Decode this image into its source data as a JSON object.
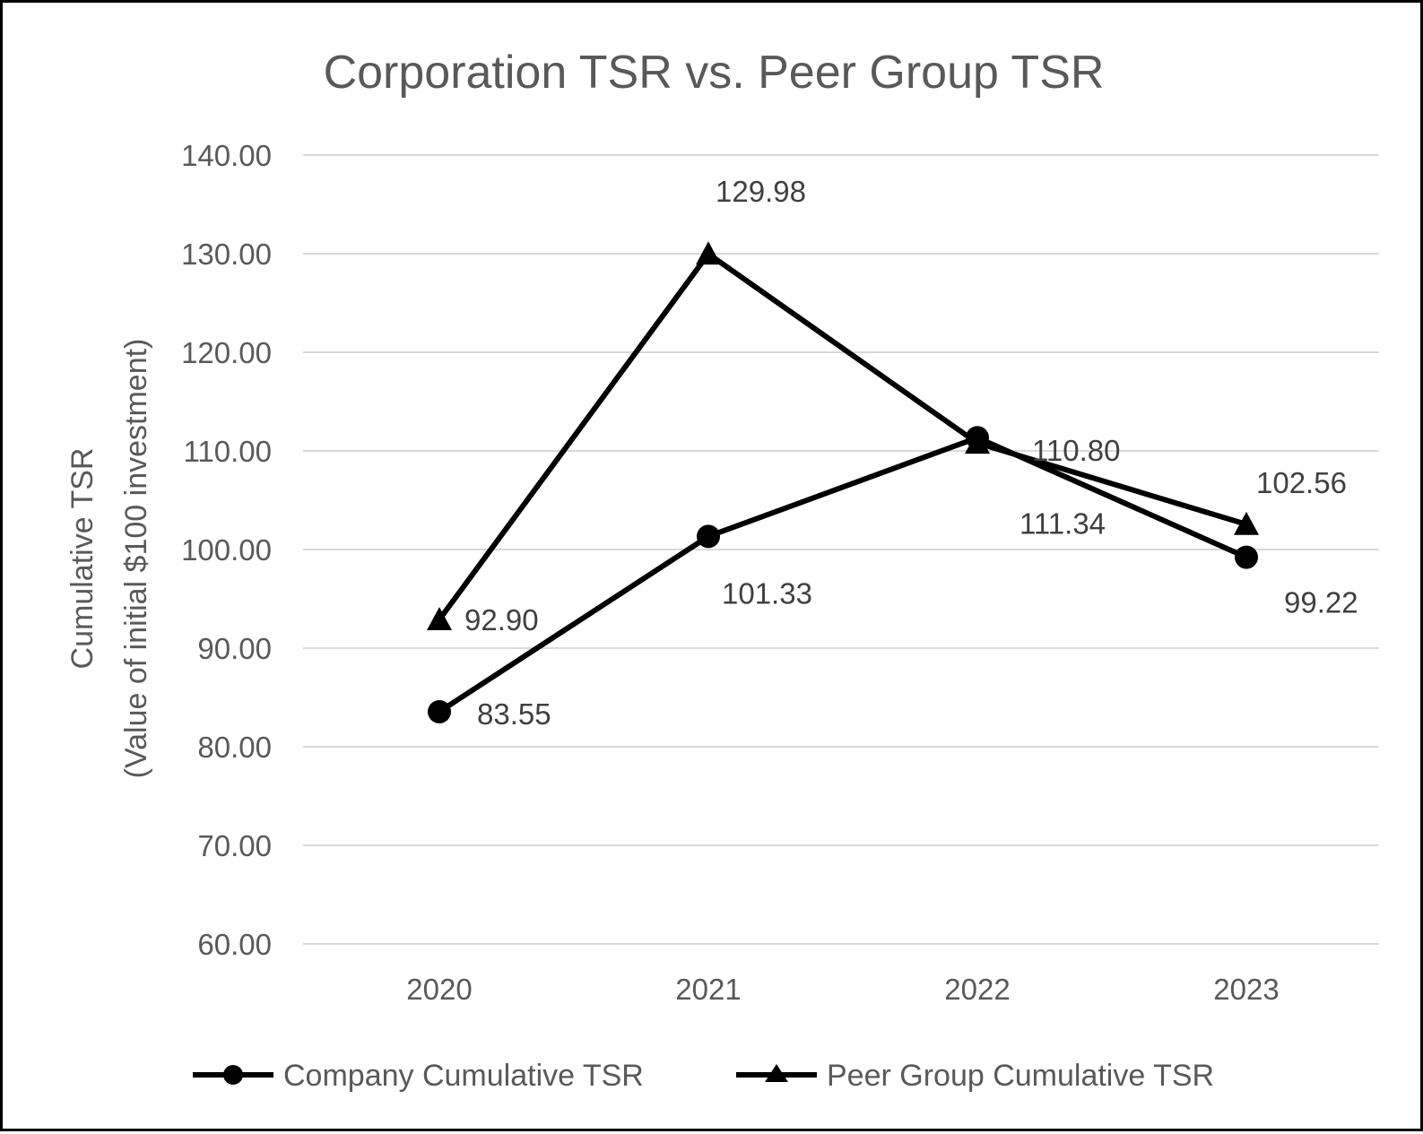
{
  "chart_data": {
    "type": "line",
    "title": "Corporation TSR vs. Peer Group TSR",
    "ylabel_lines": [
      "Cumulative TSR",
      "(Value of initial $100 investment)"
    ],
    "xlabel": "",
    "categories": [
      "2020",
      "2021",
      "2022",
      "2023"
    ],
    "ylim": [
      60,
      140
    ],
    "yticks": [
      60,
      70,
      80,
      90,
      100,
      110,
      120,
      130,
      140
    ],
    "ytick_labels": [
      "60.00",
      "70.00",
      "80.00",
      "90.00",
      "100.00",
      "110.00",
      "120.00",
      "130.00",
      "140.00"
    ],
    "grid": true,
    "legend_position": "bottom",
    "series": [
      {
        "name": "Company Cumulative TSR",
        "marker": "circle",
        "color": "#000000",
        "values": [
          83.55,
          101.33,
          111.34,
          99.22
        ],
        "labels": [
          "83.55",
          "101.33",
          "111.34",
          "99.22"
        ]
      },
      {
        "name": "Peer Group Cumulative TSR",
        "marker": "triangle",
        "color": "#000000",
        "values": [
          92.9,
          129.98,
          110.8,
          102.56
        ],
        "labels": [
          "92.90",
          "129.98",
          "110.80",
          "102.56"
        ]
      }
    ]
  }
}
